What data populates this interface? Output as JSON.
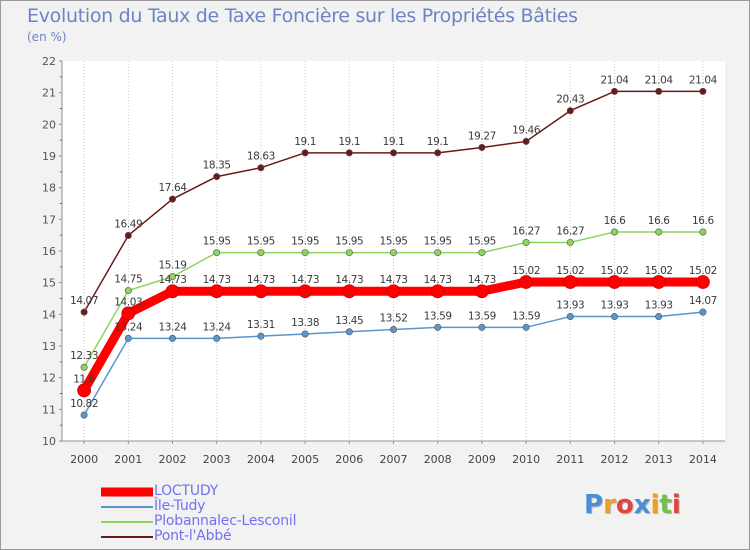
{
  "header": {
    "title": "Evolution du Taux de Taxe Foncière sur les Propriétés Bâties",
    "unit": "(en %)"
  },
  "chart_data": {
    "type": "line",
    "title": "Evolution du Taux de Taxe Foncière sur les Propriétés Bâties",
    "ylabel": "(en %)",
    "xlabel": "",
    "ylim": [
      10,
      22
    ],
    "yticks": [
      "10",
      "11",
      "12",
      "13",
      "14",
      "15",
      "16",
      "17",
      "18",
      "19",
      "20",
      "21",
      "22"
    ],
    "categories": [
      "2000",
      "2001",
      "2002",
      "2003",
      "2004",
      "2005",
      "2006",
      "2007",
      "2008",
      "2009",
      "2010",
      "2011",
      "2012",
      "2013",
      "2014"
    ],
    "series": [
      {
        "name": "Pont-l'Abbé",
        "color": "#6b1a1a",
        "values": [
          14.07,
          16.49,
          17.64,
          18.35,
          18.63,
          19.1,
          19.1,
          19.1,
          19.1,
          19.27,
          19.46,
          20.43,
          21.04,
          21.04,
          21.04
        ],
        "labels": [
          "14.07",
          "16.49",
          "17.64",
          "18.35",
          "18.63",
          "19.1",
          "19.1",
          "19.1",
          "19.1",
          "19.27",
          "19.46",
          "20.43",
          "21.04",
          "21.04",
          "21.04"
        ]
      },
      {
        "name": "Plobannalec-Lesconil",
        "color": "#8ed460",
        "values": [
          12.33,
          14.75,
          15.19,
          15.95,
          15.95,
          15.95,
          15.95,
          15.95,
          15.95,
          15.95,
          16.27,
          16.27,
          16.6,
          16.6,
          16.6
        ],
        "labels": [
          "12.33",
          "14.75",
          "15.19",
          "15.95",
          "15.95",
          "15.95",
          "15.95",
          "15.95",
          "15.95",
          "15.95",
          "16.27",
          "16.27",
          "16.6",
          "16.6",
          "16.6"
        ]
      },
      {
        "name": "Île-Tudy",
        "color": "#5a96cc",
        "values": [
          10.82,
          13.24,
          13.24,
          13.24,
          13.31,
          13.38,
          13.45,
          13.52,
          13.59,
          13.59,
          13.59,
          13.93,
          13.93,
          13.93,
          14.07
        ],
        "labels": [
          "10.82",
          "13.24",
          "13.24",
          "13.24",
          "13.31",
          "13.38",
          "13.45",
          "13.52",
          "13.59",
          "13.59",
          "13.59",
          "13.93",
          "13.93",
          "13.93",
          "14.07"
        ]
      },
      {
        "name": "LOCTUDY",
        "color": "#ff0000",
        "values": [
          11.6,
          14.03,
          14.73,
          14.73,
          14.73,
          14.73,
          14.73,
          14.73,
          14.73,
          14.73,
          15.02,
          15.02,
          15.02,
          15.02,
          15.02
        ],
        "labels": [
          "11.6",
          "14.03",
          "14.73",
          "14.73",
          "14.73",
          "14.73",
          "14.73",
          "14.73",
          "14.73",
          "14.73",
          "15.02",
          "15.02",
          "15.02",
          "15.02",
          "15.02"
        ]
      }
    ],
    "legend": [
      "LOCTUDY",
      "Île-Tudy",
      "Plobannalec-Lesconil",
      "Pont-l'Abbé"
    ],
    "legend_position": "bottom-left",
    "grid": "vertical dotted"
  },
  "legend": {
    "items": [
      {
        "label": "LOCTUDY",
        "color": "#ff0000"
      },
      {
        "label": "Île-Tudy",
        "color": "#5a96cc"
      },
      {
        "label": "Plobannalec-Lesconil",
        "color": "#8ed460"
      },
      {
        "label": "Pont-l'Abbé",
        "color": "#6b1a1a"
      }
    ]
  },
  "logo": {
    "letters": [
      "P",
      "r",
      "o",
      "x",
      "i",
      "t",
      "i"
    ],
    "colors": [
      "#4a8ed8",
      "#f0a020",
      "#e84040",
      "#4a8ed8",
      "#f0a020",
      "#70c050",
      "#e84040"
    ]
  }
}
